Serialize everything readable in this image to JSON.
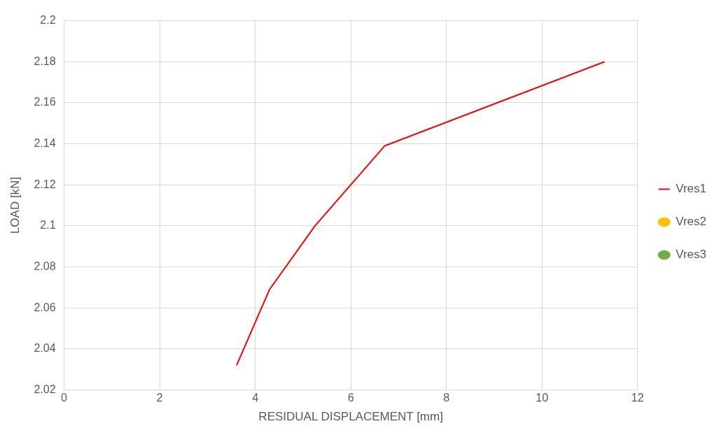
{
  "chart_data": {
    "type": "line",
    "xlabel": "RESIDUAL DISPLACEMENT [mm]",
    "ylabel": "LOAD [kN]",
    "xlim": [
      0,
      12
    ],
    "xticks": [
      0,
      2,
      4,
      6,
      8,
      10,
      12
    ],
    "ylim": [
      2.02,
      2.2
    ],
    "yticks": [
      2.02,
      2.04,
      2.06,
      2.08,
      2.1,
      2.12,
      2.14,
      2.16,
      2.18,
      2.2
    ],
    "grid": true,
    "legend": "right",
    "series": [
      {
        "name": "Vres1",
        "color": "#ff0000",
        "x": [
          3.61,
          4.3,
          5.25,
          6.71,
          11.31
        ],
        "values": [
          2.032,
          2.069,
          2.1,
          2.139,
          2.18
        ]
      },
      {
        "name": "Vres2",
        "type": "scatter",
        "color": "#ffc000"
      },
      {
        "name": "Vres3",
        "type": "scatter",
        "color": "#70ad47"
      }
    ]
  }
}
